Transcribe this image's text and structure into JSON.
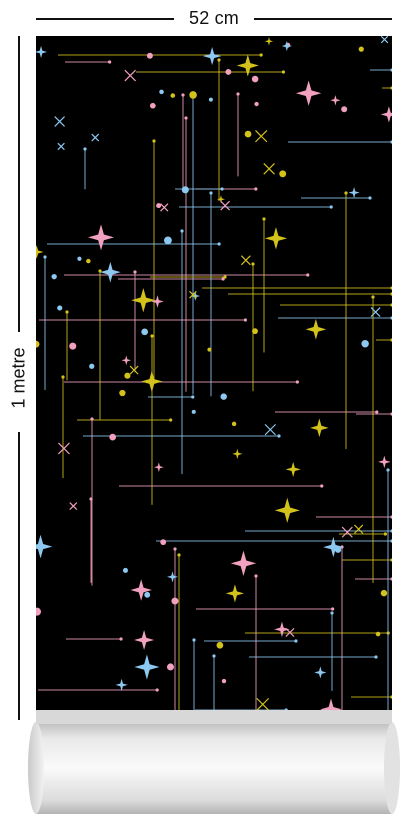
{
  "dimensions": {
    "width_label": "52 cm",
    "height_label": "1 metre"
  },
  "pattern": {
    "background_color": "#000000",
    "colors": {
      "yellow": "#d4c21c",
      "pink": "#f2a0c0",
      "blue": "#8cc8f0"
    }
  }
}
